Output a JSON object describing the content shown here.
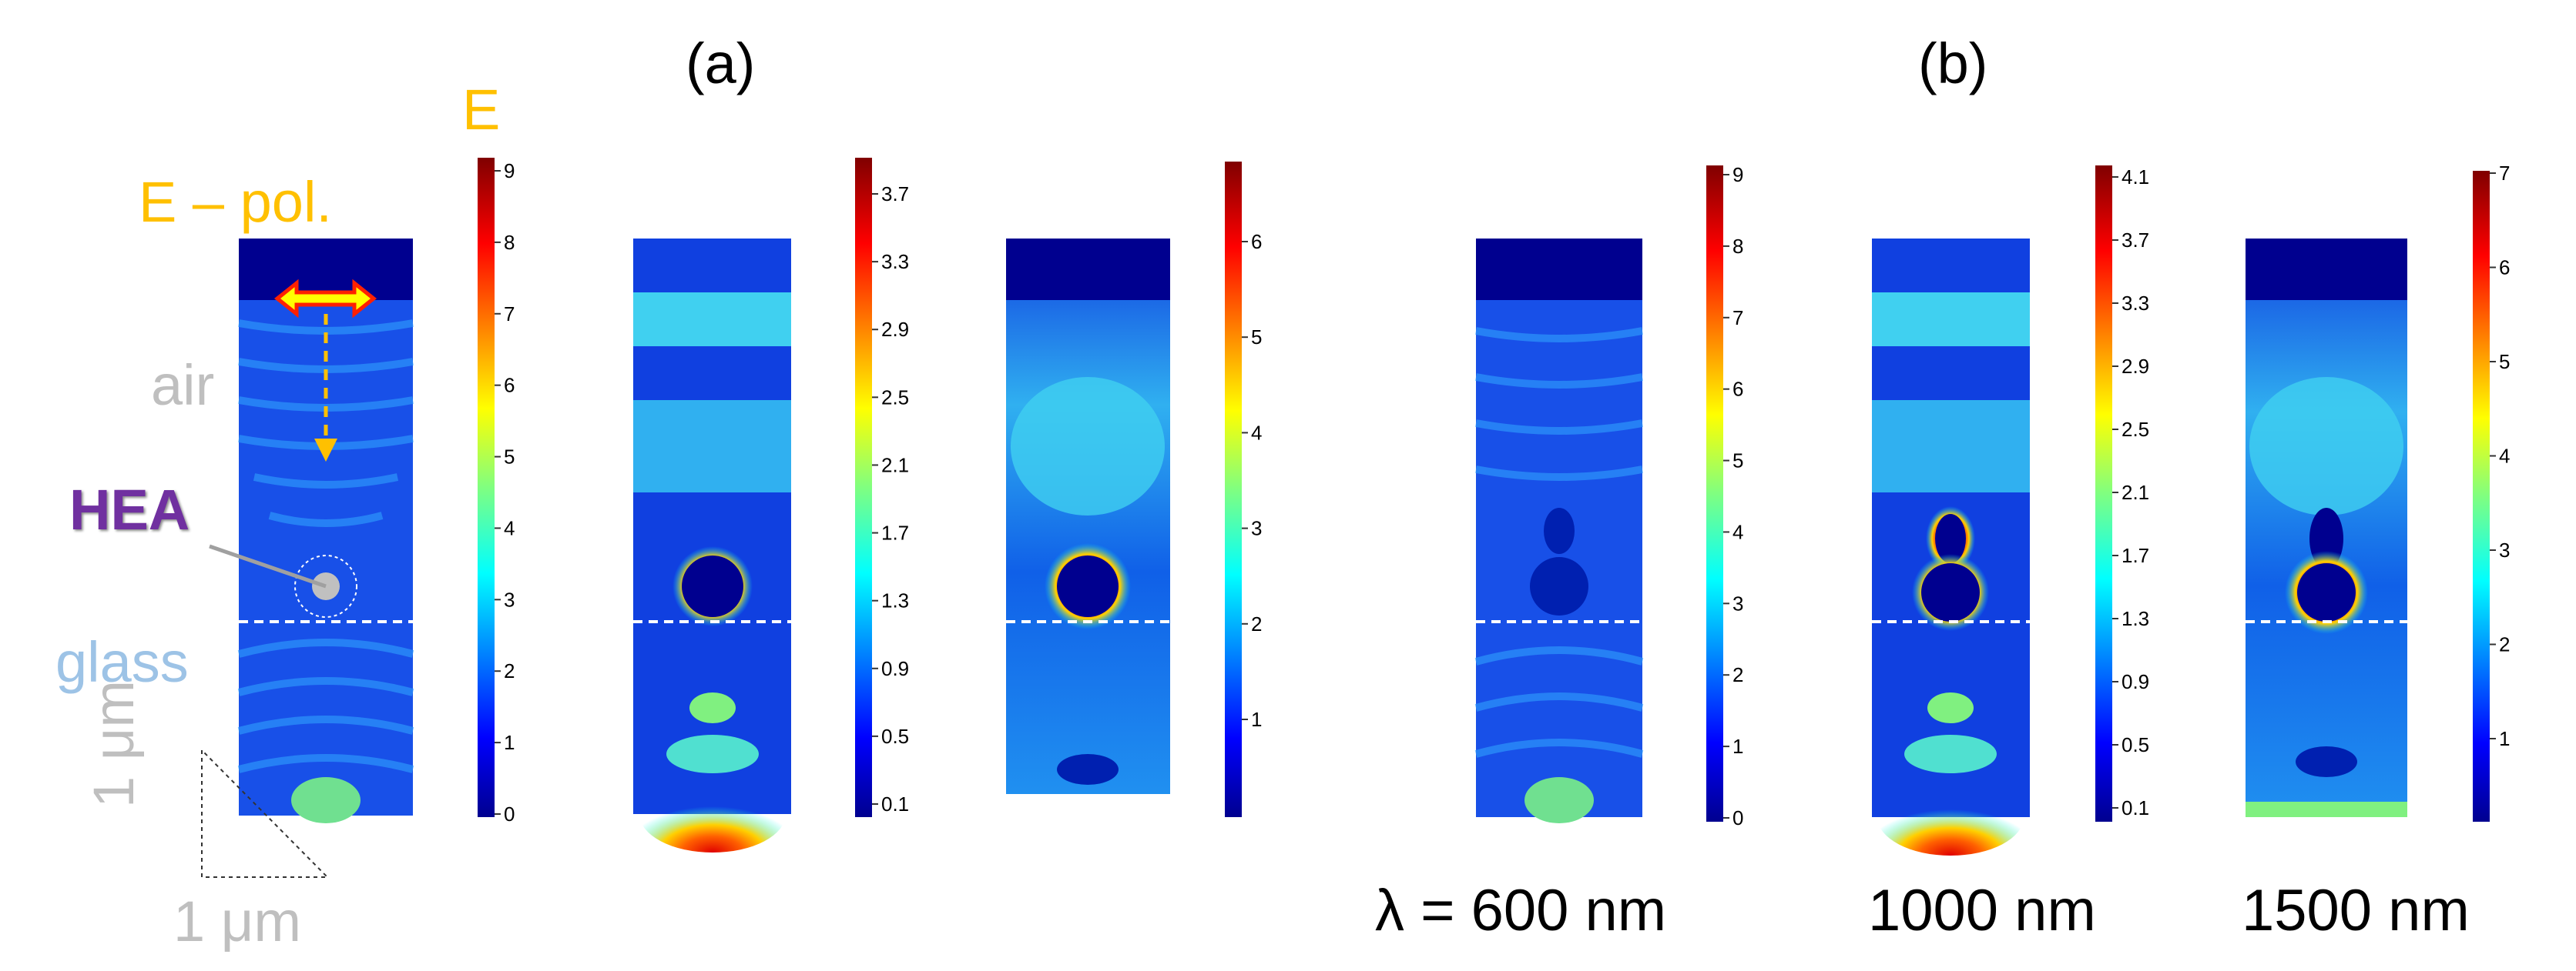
{
  "panels": {
    "a_label": "(a)",
    "b_label": "(b)"
  },
  "annotations": {
    "field_symbol": "E",
    "polarization": "E – pol.",
    "air": "air",
    "particle": "HEA",
    "substrate": "glass",
    "scale_vertical": "1 μm",
    "scale_horizontal": "1 μm"
  },
  "wavelengths": [
    "λ = 600 nm",
    "1000 nm",
    "1500 nm"
  ],
  "colorbars": [
    {
      "ticks": [
        "0",
        "1",
        "2",
        "3",
        "4",
        "5",
        "6",
        "7",
        "8",
        "9"
      ]
    },
    {
      "ticks": [
        "0.1",
        "0.5",
        "0.9",
        "1.3",
        "1.7",
        "2.1",
        "2.5",
        "2.9",
        "3.3",
        "3.7"
      ]
    },
    {
      "ticks": [
        "1",
        "2",
        "3",
        "4",
        "5",
        "6"
      ]
    },
    {
      "ticks": [
        "0",
        "1",
        "2",
        "3",
        "4",
        "5",
        "6",
        "7",
        "8",
        "9"
      ]
    },
    {
      "ticks": [
        "0.1",
        "0.5",
        "0.9",
        "1.3",
        "1.7",
        "2.1",
        "2.5",
        "2.9",
        "3.3",
        "3.7",
        "4.1"
      ]
    },
    {
      "ticks": [
        "1",
        "2",
        "3",
        "4",
        "5",
        "6",
        "7"
      ]
    }
  ],
  "colors": {
    "polarization": "#ffc000",
    "particle_label": "#7030a0",
    "glass_label": "#9dc3e6",
    "air_label": "#bfbfbf",
    "field_low": "#00008f",
    "field_high": "#800000"
  }
}
